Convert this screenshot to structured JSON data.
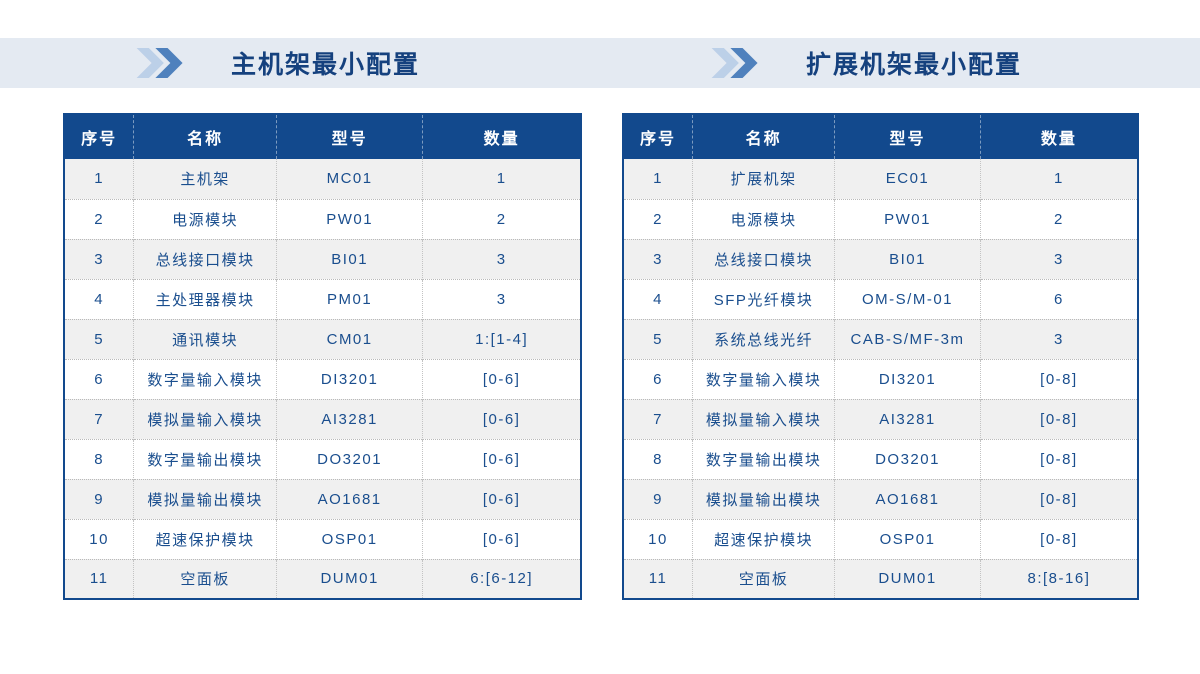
{
  "colors": {
    "header_blue": "#12498d",
    "band_background": "#e4eaf2",
    "row_stripe": "#f0f0f0",
    "cell_text": "#1a4e8e",
    "title_text": "#15417e",
    "chevron_light": "#bcd0e8",
    "chevron_dark": "#4f81bd"
  },
  "sections": [
    {
      "title": "主机架最小配置",
      "icon": "double-chevron-right-icon",
      "table": {
        "headers": [
          "序号",
          "名称",
          "型号",
          "数量"
        ],
        "rows": [
          [
            "1",
            "主机架",
            "MC01",
            "1"
          ],
          [
            "2",
            "电源模块",
            "PW01",
            "2"
          ],
          [
            "3",
            "总线接口模块",
            "BI01",
            "3"
          ],
          [
            "4",
            "主处理器模块",
            "PM01",
            "3"
          ],
          [
            "5",
            "通讯模块",
            "CM01",
            "1:[1-4]"
          ],
          [
            "6",
            "数字量输入模块",
            "DI3201",
            "[0-6]"
          ],
          [
            "7",
            "模拟量输入模块",
            "AI3281",
            "[0-6]"
          ],
          [
            "8",
            "数字量输出模块",
            "DO3201",
            "[0-6]"
          ],
          [
            "9",
            "模拟量输出模块",
            "AO1681",
            "[0-6]"
          ],
          [
            "10",
            "超速保护模块",
            "OSP01",
            "[0-6]"
          ],
          [
            "11",
            "空面板",
            "DUM01",
            "6:[6-12]"
          ]
        ]
      }
    },
    {
      "title": "扩展机架最小配置",
      "icon": "double-chevron-right-icon",
      "table": {
        "headers": [
          "序号",
          "名称",
          "型号",
          "数量"
        ],
        "rows": [
          [
            "1",
            "扩展机架",
            "EC01",
            "1"
          ],
          [
            "2",
            "电源模块",
            "PW01",
            "2"
          ],
          [
            "3",
            "总线接口模块",
            "BI01",
            "3"
          ],
          [
            "4",
            "SFP光纤模块",
            "OM-S/M-01",
            "6"
          ],
          [
            "5",
            "系统总线光纤",
            "CAB-S/MF-3m",
            "3"
          ],
          [
            "6",
            "数字量输入模块",
            "DI3201",
            "[0-8]"
          ],
          [
            "7",
            "模拟量输入模块",
            "AI3281",
            "[0-8]"
          ],
          [
            "8",
            "数字量输出模块",
            "DO3201",
            "[0-8]"
          ],
          [
            "9",
            "模拟量输出模块",
            "AO1681",
            "[0-8]"
          ],
          [
            "10",
            "超速保护模块",
            "OSP01",
            "[0-8]"
          ],
          [
            "11",
            "空面板",
            "DUM01",
            "8:[8-16]"
          ]
        ]
      }
    }
  ]
}
